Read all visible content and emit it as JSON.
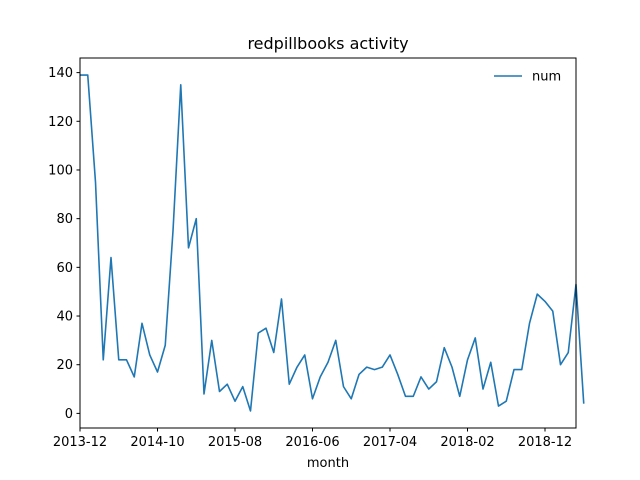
{
  "chart_data": {
    "type": "line",
    "title": "redpillbooks activity",
    "xlabel": "month",
    "ylabel": "",
    "ylim": [
      -6,
      146
    ],
    "xlim": [
      0,
      64
    ],
    "x_tick_labels": [
      "2013-12",
      "2014-10",
      "2015-08",
      "2016-06",
      "2017-04",
      "2018-02",
      "2018-12"
    ],
    "x_tick_positions": [
      0,
      10,
      20,
      30,
      40,
      50,
      60
    ],
    "y_ticks": [
      0,
      20,
      40,
      60,
      80,
      100,
      120,
      140
    ],
    "legend": {
      "placement": "top-right",
      "entries": [
        "num"
      ]
    },
    "grid": false,
    "series": [
      {
        "name": "num",
        "color": "#1f77b4",
        "values": [
          139,
          139,
          95,
          22,
          64,
          22,
          22,
          15,
          37,
          24,
          17,
          28,
          75,
          135,
          68,
          80,
          8,
          30,
          9,
          12,
          5,
          11,
          1,
          33,
          35,
          25,
          47,
          12,
          19,
          24,
          6,
          15,
          21,
          30,
          11,
          6,
          16,
          19,
          18,
          19,
          24,
          16,
          7,
          7,
          15,
          10,
          13,
          27,
          19,
          7,
          22,
          31,
          10,
          21,
          3,
          5,
          18,
          18,
          37,
          49,
          46,
          42,
          20,
          25,
          53,
          4
        ]
      }
    ]
  }
}
